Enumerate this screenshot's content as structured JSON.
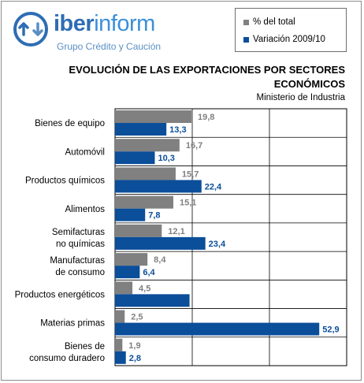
{
  "brand": {
    "name_bold": "iber",
    "name_rest": "inform",
    "tagline": "Grupo Crédito y Caución"
  },
  "header": {
    "title_line1": "EVOLUCIÓN DE LAS EXPORTACIONES POR SECTORES",
    "title_line2": "ECONÓMICOS",
    "subtitle": "Ministerio de Industria"
  },
  "colors": {
    "series1": "#808080",
    "series2": "#0b4e9a",
    "brand": "#2e6db4"
  },
  "chart_data": {
    "type": "bar",
    "orientation": "horizontal",
    "categories": [
      "Bienes de equipo",
      "Automóvil",
      "Productos químicos",
      "Alimentos",
      "Semifacturas no químicas",
      "Manufacturas de consumo",
      "Productos energéticos",
      "Materias primas",
      "Bienes de consumo duradero"
    ],
    "series": [
      {
        "name": "% del total",
        "values": [
          19.8,
          16.7,
          15.7,
          15.1,
          12.1,
          8.4,
          4.5,
          2.5,
          1.9
        ],
        "labels": [
          "19,8",
          "16,7",
          "15,7",
          "15,1",
          "12,1",
          "8,4",
          "4,5",
          "2,5",
          "1,9"
        ]
      },
      {
        "name": "Variación 2009/10",
        "values": [
          13.3,
          10.3,
          22.4,
          7.8,
          23.4,
          6.4,
          19.3,
          52.9,
          2.8
        ],
        "labels": [
          "13,3",
          "10,3",
          "22,4",
          "7,8",
          "23,4",
          "6,4",
          "",
          "52,9",
          "2,8"
        ]
      }
    ],
    "xlim": [
      0,
      60
    ],
    "grid": true,
    "legend": "top-right"
  }
}
